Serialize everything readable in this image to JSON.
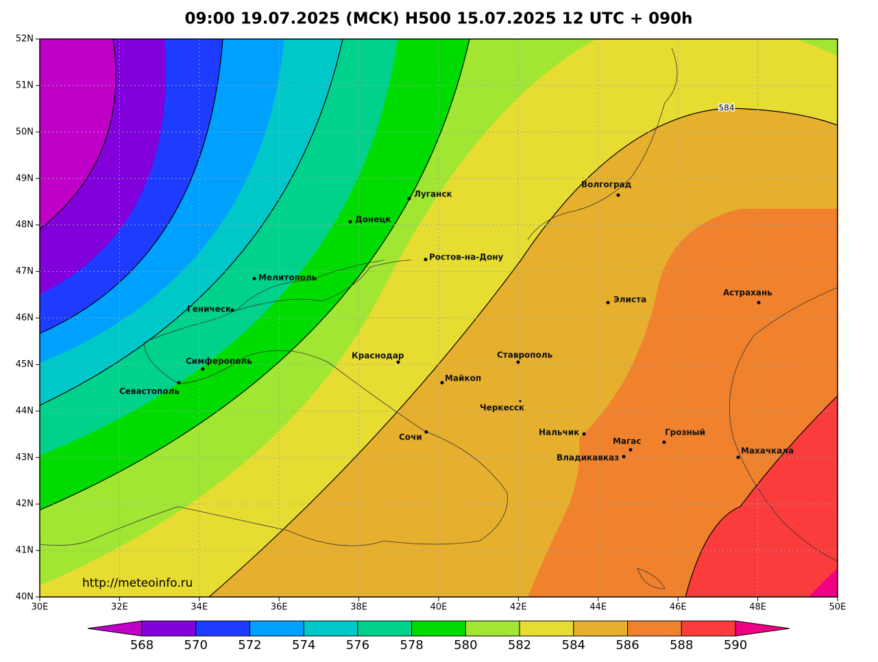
{
  "title": "09:00 19.07.2025 (MCK) H500  15.07.2025 12 UTC + 090h",
  "lat_labels": [
    "52N",
    "51N",
    "50N",
    "49N",
    "48N",
    "47N",
    "46N",
    "45N",
    "44N",
    "43N",
    "42N",
    "41N",
    "40N"
  ],
  "lon_labels": [
    "30E",
    "32E",
    "34E",
    "36E",
    "38E",
    "40E",
    "42E",
    "44E",
    "46E",
    "48E",
    "50E"
  ],
  "contour_label": "584",
  "url": "http://meteoinfo.ru",
  "cities": [
    "Волгоград",
    "Луганск",
    "Донецк",
    "Ростов-на-Дону",
    "Мелитополь",
    "Геническ",
    "Элиста",
    "Астрахань",
    "Симферополь",
    "Краснодар",
    "Ставрополь",
    "Севастополь",
    "Майкоп",
    "Черкесск",
    "Сочи",
    "Нальчик",
    "Магас",
    "Грозный",
    "Владикавказ",
    "Махачкала"
  ],
  "colorbar": {
    "values": [
      568,
      570,
      572,
      574,
      576,
      578,
      580,
      582,
      584,
      586,
      588,
      590
    ],
    "colors": [
      "#c000c8",
      "#8200dc",
      "#1e3cff",
      "#00a0ff",
      "#00c8c8",
      "#00d28c",
      "#00dc00",
      "#a0e632",
      "#e6dc32",
      "#e6af2d",
      "#f0822d",
      "#fa3c3c",
      "#f00082"
    ]
  }
}
